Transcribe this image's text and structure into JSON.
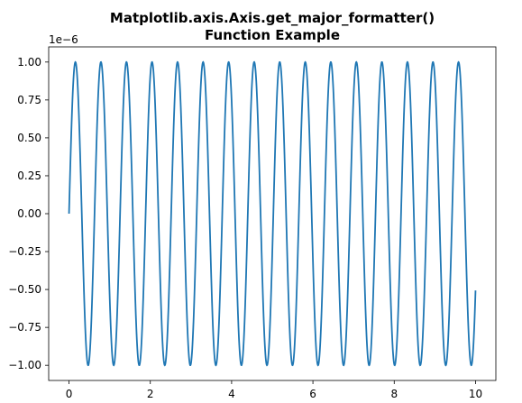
{
  "chart_data": {
    "type": "line",
    "title_lines": [
      "Matplotlib.axis.Axis.get_major_formatter()",
      "Function Example"
    ],
    "y_offset_label": "1e−6",
    "x_ticks": [
      {
        "value": 0,
        "label": "0"
      },
      {
        "value": 2,
        "label": "2"
      },
      {
        "value": 4,
        "label": "4"
      },
      {
        "value": 6,
        "label": "6"
      },
      {
        "value": 8,
        "label": "8"
      },
      {
        "value": 10,
        "label": "10"
      }
    ],
    "y_ticks": [
      {
        "value": -1.0,
        "label": "−1.00"
      },
      {
        "value": -0.75,
        "label": "−0.75"
      },
      {
        "value": -0.5,
        "label": "−0.50"
      },
      {
        "value": -0.25,
        "label": "−0.25"
      },
      {
        "value": 0.0,
        "label": "0.00"
      },
      {
        "value": 0.25,
        "label": "0.25"
      },
      {
        "value": 0.5,
        "label": "0.50"
      },
      {
        "value": 0.75,
        "label": "0.75"
      },
      {
        "value": 1.0,
        "label": "1.00"
      }
    ],
    "xlim": [
      -0.5,
      10.5
    ],
    "ylim": [
      -1.1,
      1.1
    ],
    "series": [
      {
        "function": "sin(10 * x)",
        "x_range": [
          0,
          10
        ],
        "y_scale": "1e-6",
        "color": "#1f77b4"
      }
    ],
    "grid": false,
    "legend": "none"
  }
}
